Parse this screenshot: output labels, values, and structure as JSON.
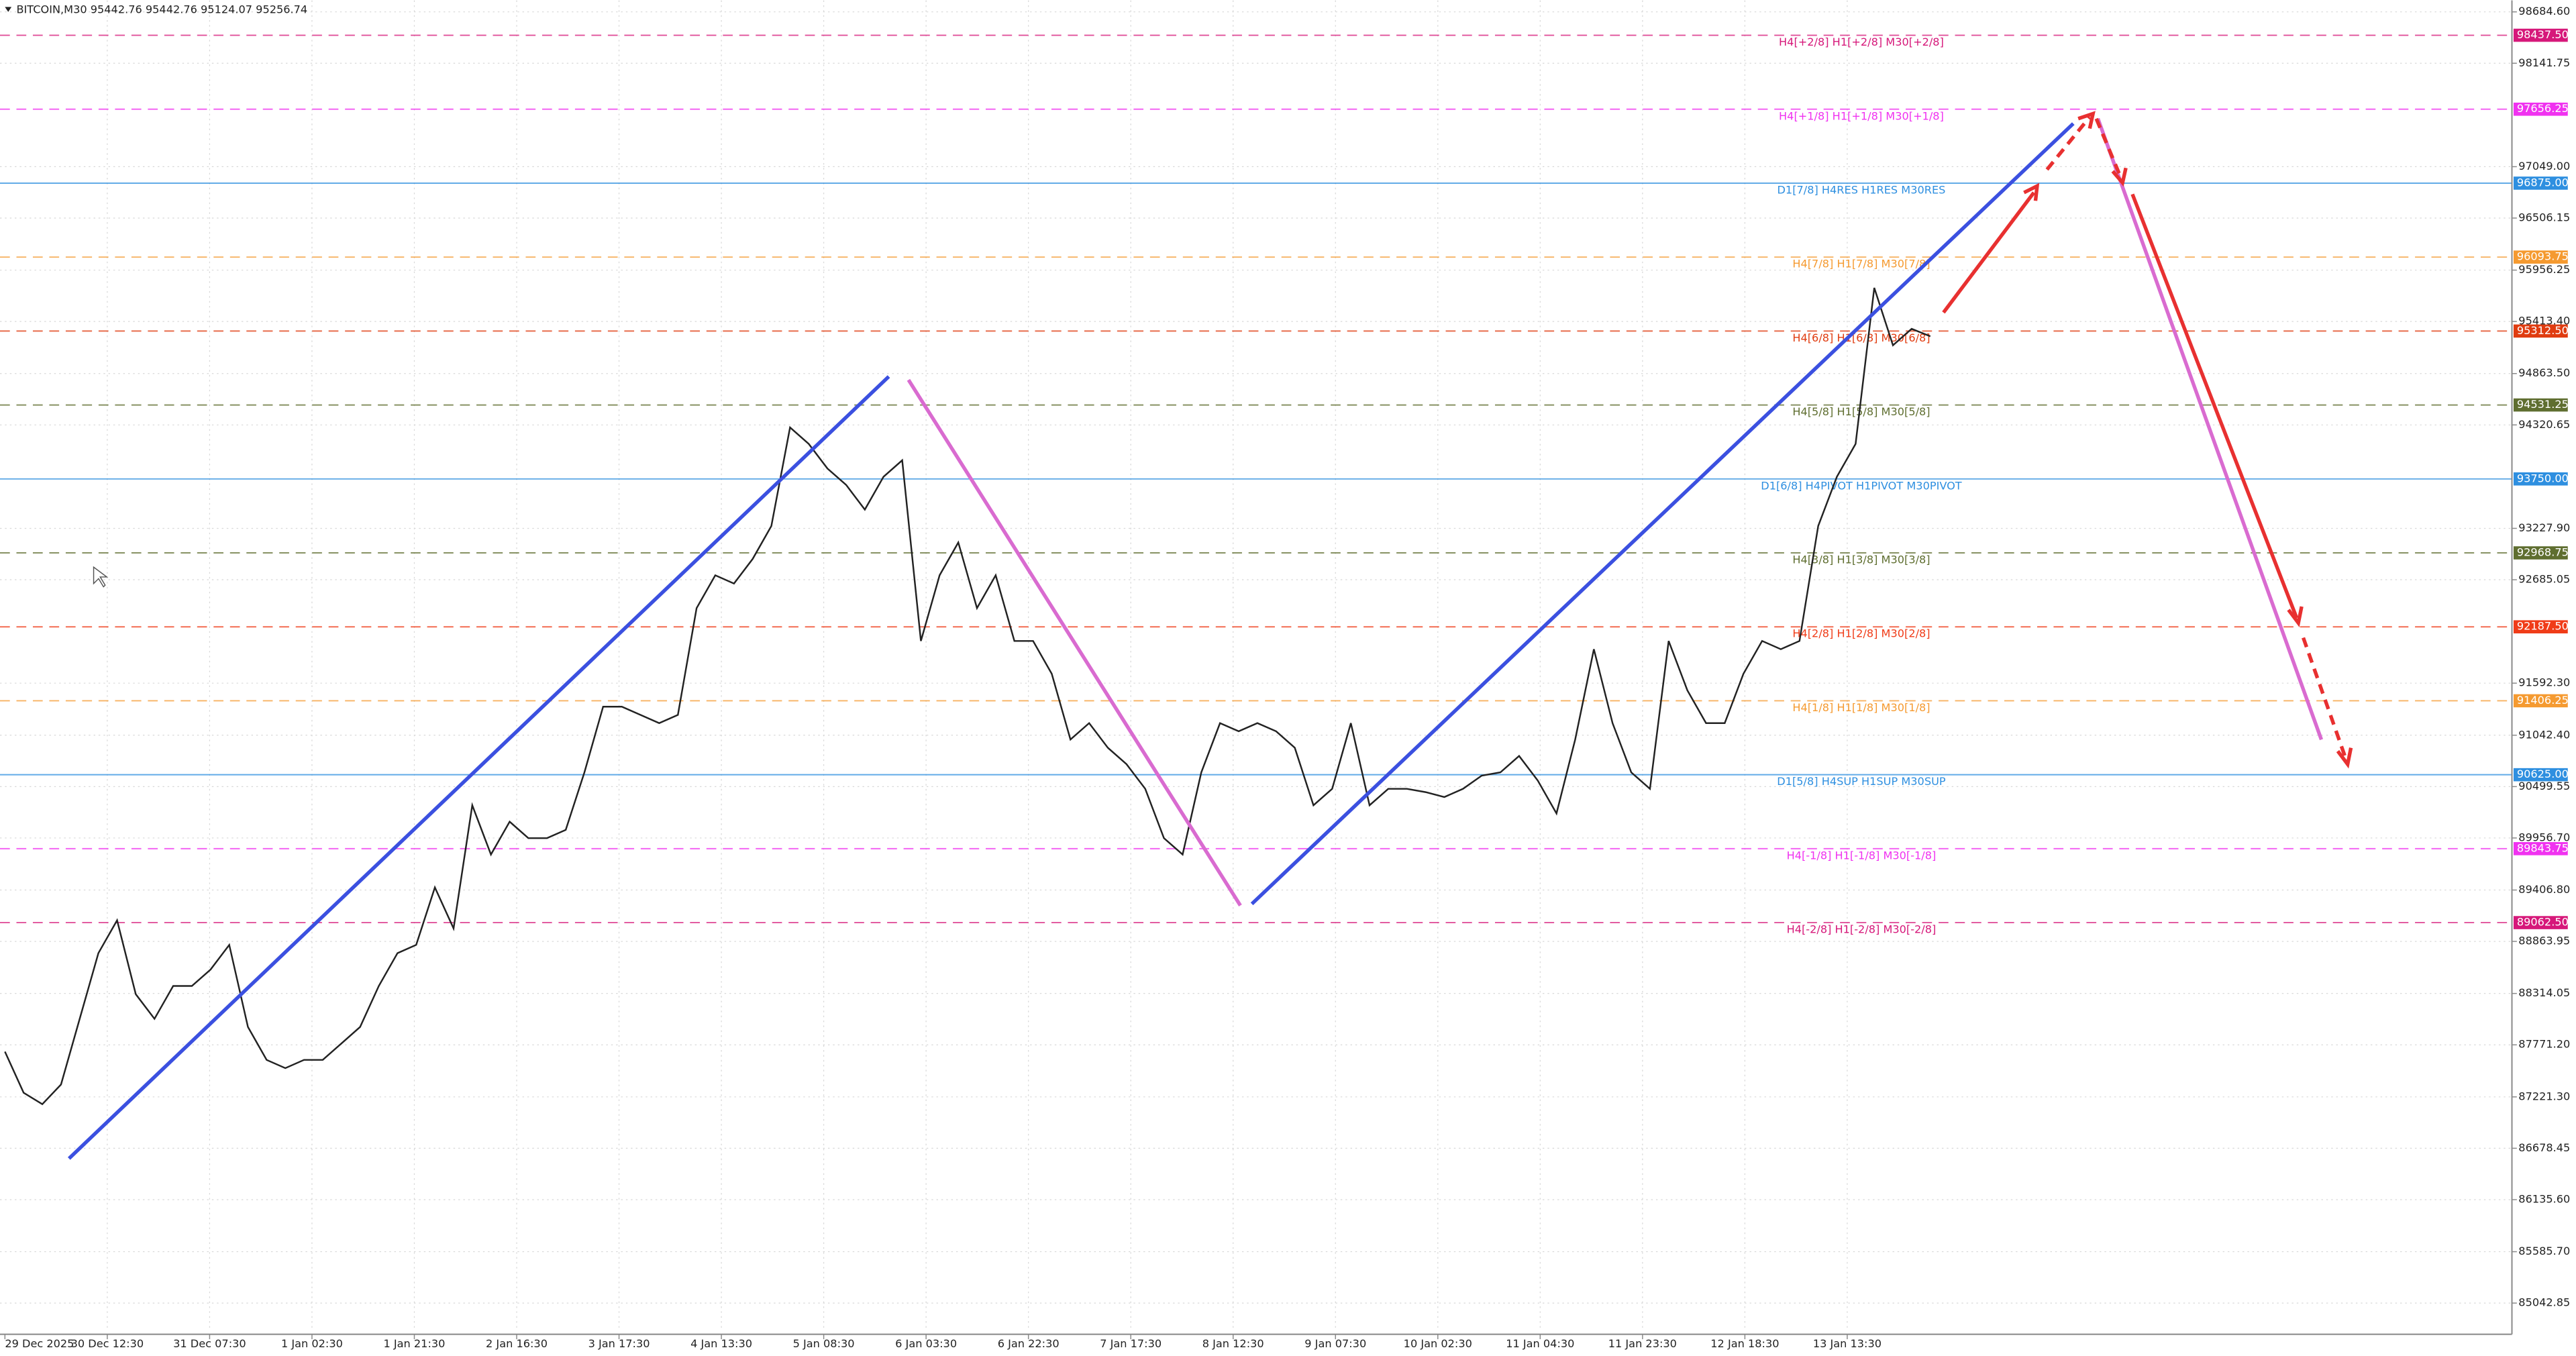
{
  "chart_data": {
    "type": "line",
    "title": "BITCOIN,M30  95442.76 95442.76 95124.07 95256.74",
    "color": "#222222",
    "values": [
      87699,
      87265,
      87144,
      87352,
      88046,
      88740,
      89087,
      88306,
      88046,
      88393,
      88393,
      88567,
      88827,
      87960,
      87612,
      87525,
      87612,
      87612,
      87786,
      87960,
      88393,
      88740,
      88827,
      89434,
      89001,
      90302,
      89782,
      90129,
      89955,
      89955,
      90042,
      90650,
      91344,
      91344,
      91257,
      91170,
      91257,
      92385,
      92732,
      92645,
      92905,
      93253,
      94294,
      94120,
      93860,
      93687,
      93426,
      93773,
      93947,
      92038,
      92732,
      93079,
      92385,
      92732,
      92038,
      92038,
      91691,
      90997,
      91170,
      90910,
      90736,
      90476,
      89955,
      89782,
      90650,
      91170,
      91084,
      91170,
      91084,
      90910,
      90302,
      90476,
      91170,
      90302,
      90476,
      90476,
      90441,
      90389,
      90476,
      90615,
      90650,
      90823,
      90563,
      90216,
      90997,
      91951,
      91170,
      90650,
      90476,
      92038,
      91517,
      91170,
      91170,
      91691,
      92038,
      91951,
      92038,
      93253,
      93773,
      94120,
      95769,
      95162,
      95336,
      95257
    ],
    "ylim": [
      84748,
      98806
    ],
    "yticks": [
      {
        "value": 98684.6,
        "label": "98684.60"
      },
      {
        "value": 98141.75,
        "label": "98141.75"
      },
      {
        "value": 97049,
        "label": "97049.00"
      },
      {
        "value": 96506.15,
        "label": "96506.15"
      },
      {
        "value": 95956.25,
        "label": "95956.25"
      },
      {
        "value": 95413.4,
        "label": "95413.40"
      },
      {
        "value": 94863.5,
        "label": "94863.50"
      },
      {
        "value": 94320.65,
        "label": "94320.65"
      },
      {
        "value": 93227.9,
        "label": "93227.90"
      },
      {
        "value": 92685.05,
        "label": "92685.05"
      },
      {
        "value": 91592.3,
        "label": "91592.30"
      },
      {
        "value": 91042.4,
        "label": "91042.40"
      },
      {
        "value": 90499.55,
        "label": "90499.55"
      },
      {
        "value": 89956.7,
        "label": "89956.70"
      },
      {
        "value": 89406.8,
        "label": "89406.80"
      },
      {
        "value": 88863.95,
        "label": "88863.95"
      },
      {
        "value": 88314.05,
        "label": "88314.05"
      },
      {
        "value": 87771.2,
        "label": "87771.20"
      },
      {
        "value": 87221.3,
        "label": "87221.30"
      },
      {
        "value": 86678.45,
        "label": "86678.45"
      },
      {
        "value": 86135.6,
        "label": "86135.60"
      },
      {
        "value": 85585.7,
        "label": "85585.70"
      },
      {
        "value": 85042.85,
        "label": "85042.85"
      }
    ],
    "xticks": [
      "29 Dec 2025",
      "30 Dec 12:30",
      "31 Dec 07:30",
      "1 Jan 02:30",
      "1 Jan 21:30",
      "2 Jan 16:30",
      "3 Jan 17:30",
      "4 Jan 13:30",
      "5 Jan 08:30",
      "6 Jan 03:30",
      "6 Jan 22:30",
      "7 Jan 17:30",
      "8 Jan 12:30",
      "9 Jan 07:30",
      "10 Jan 02:30",
      "11 Jan 04:30",
      "11 Jan 23:30",
      "12 Jan 18:30",
      "13 Jan 13:30"
    ],
    "grid": true,
    "levels": [
      {
        "label": "H4[+2/8] H1[+2/8] M30[+2/8]",
        "value": 98437.5,
        "value_label": "98437.50",
        "color": "#d6187a",
        "style": "dashed"
      },
      {
        "label": "H4[+1/8] H1[+1/8] M30[+1/8]",
        "value": 97656.25,
        "value_label": "97656.25",
        "color": "#f032f0",
        "style": "dashed"
      },
      {
        "label": "D1[7/8] H4RES H1RES M30RES",
        "value": 96875,
        "value_label": "96875.00",
        "color": "#2e8fe0",
        "style": "solid"
      },
      {
        "label": "H4[7/8] H1[7/8] M30[7/8]",
        "value": 96093.75,
        "value_label": "96093.75",
        "color": "#f59a30",
        "style": "dashed"
      },
      {
        "label": "H4[6/8] H1[6/8] M30[6/8]",
        "value": 95312.5,
        "value_label": "95312.50",
        "color": "#e03c10",
        "style": "dashed"
      },
      {
        "label": "H4[5/8] H1[5/8] M30[5/8]",
        "value": 94531.25,
        "value_label": "94531.25",
        "color": "#5f6e30",
        "style": "dashed"
      },
      {
        "label": "D1[6/8] H4PIVOT H1PIVOT M30PIVOT",
        "value": 93750,
        "value_label": "93750.00",
        "color": "#2e8fe0",
        "style": "solid"
      },
      {
        "label": "H4[3/8] H1[3/8] M30[3/8]",
        "value": 92968.75,
        "value_label": "92968.75",
        "color": "#5f6e30",
        "style": "dashed"
      },
      {
        "label": "H4[2/8] H1[2/8] M30[2/8]",
        "value": 92187.5,
        "value_label": "92187.50",
        "color": "#f03c18",
        "style": "dashed"
      },
      {
        "label": "H4[1/8] H1[1/8] M30[1/8]",
        "value": 91406.25,
        "value_label": "91406.25",
        "color": "#f59a30",
        "style": "dashed"
      },
      {
        "label": "D1[5/8] H4SUP H1SUP M30SUP",
        "value": 90625,
        "value_label": "90625.00",
        "color": "#2e8fe0",
        "style": "solid"
      },
      {
        "label": "H4[-1/8] H1[-1/8] M30[-1/8]",
        "value": 89843.75,
        "value_label": "89843.75",
        "color": "#f032f0",
        "style": "dashed"
      },
      {
        "label": "H4[-2/8] H1[-2/8] M30[-2/8]",
        "value": 89062.5,
        "value_label": "89062.50",
        "color": "#d6187a",
        "style": "dashed"
      }
    ]
  }
}
